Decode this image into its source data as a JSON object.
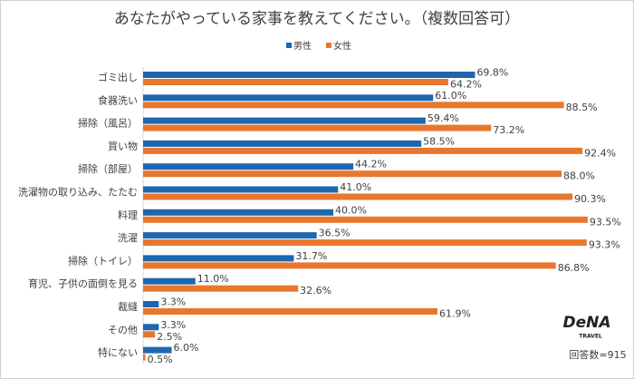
{
  "chart_data": {
    "type": "bar",
    "orientation": "horizontal",
    "title": "あなたがやっている家事を教えてください。（複数回答可）",
    "categories": [
      "ゴミ出し",
      "食器洗い",
      "掃除（風呂）",
      "買い物",
      "掃除（部屋）",
      "洗濯物の取り込み、たたむ",
      "料理",
      "洗濯",
      "掃除（トイレ）",
      "育児、子供の面倒を見る",
      "裁縫",
      "その他",
      "特にない"
    ],
    "series": [
      {
        "name": "男性",
        "color": "#1f66b0",
        "values": [
          69.8,
          61.0,
          59.4,
          58.5,
          44.2,
          41.0,
          40.0,
          36.5,
          31.7,
          11.0,
          3.3,
          3.3,
          6.0
        ],
        "value_labels": [
          "69.8%",
          "61.0%",
          "59.4%",
          "58.5%",
          "44.2%",
          "41.0%",
          "40.0%",
          "36.5%",
          "31.7%",
          "11.0%",
          "3.3%",
          "3.3%",
          "6.0%"
        ]
      },
      {
        "name": "女性",
        "color": "#e8772e",
        "values": [
          64.2,
          88.5,
          73.2,
          92.4,
          88.0,
          90.3,
          93.5,
          93.3,
          86.8,
          32.6,
          61.9,
          2.5,
          0.5
        ],
        "value_labels": [
          "64.2%",
          "88.5%",
          "73.2%",
          "92.4%",
          "88.0%",
          "90.3%",
          "93.5%",
          "93.3%",
          "86.8%",
          "32.6%",
          "61.9%",
          "2.5%",
          "0.5%"
        ]
      }
    ],
    "legend": "top",
    "note": "回答数=915",
    "logo": {
      "name": "DeNA",
      "sub": "TRAVEL"
    }
  }
}
